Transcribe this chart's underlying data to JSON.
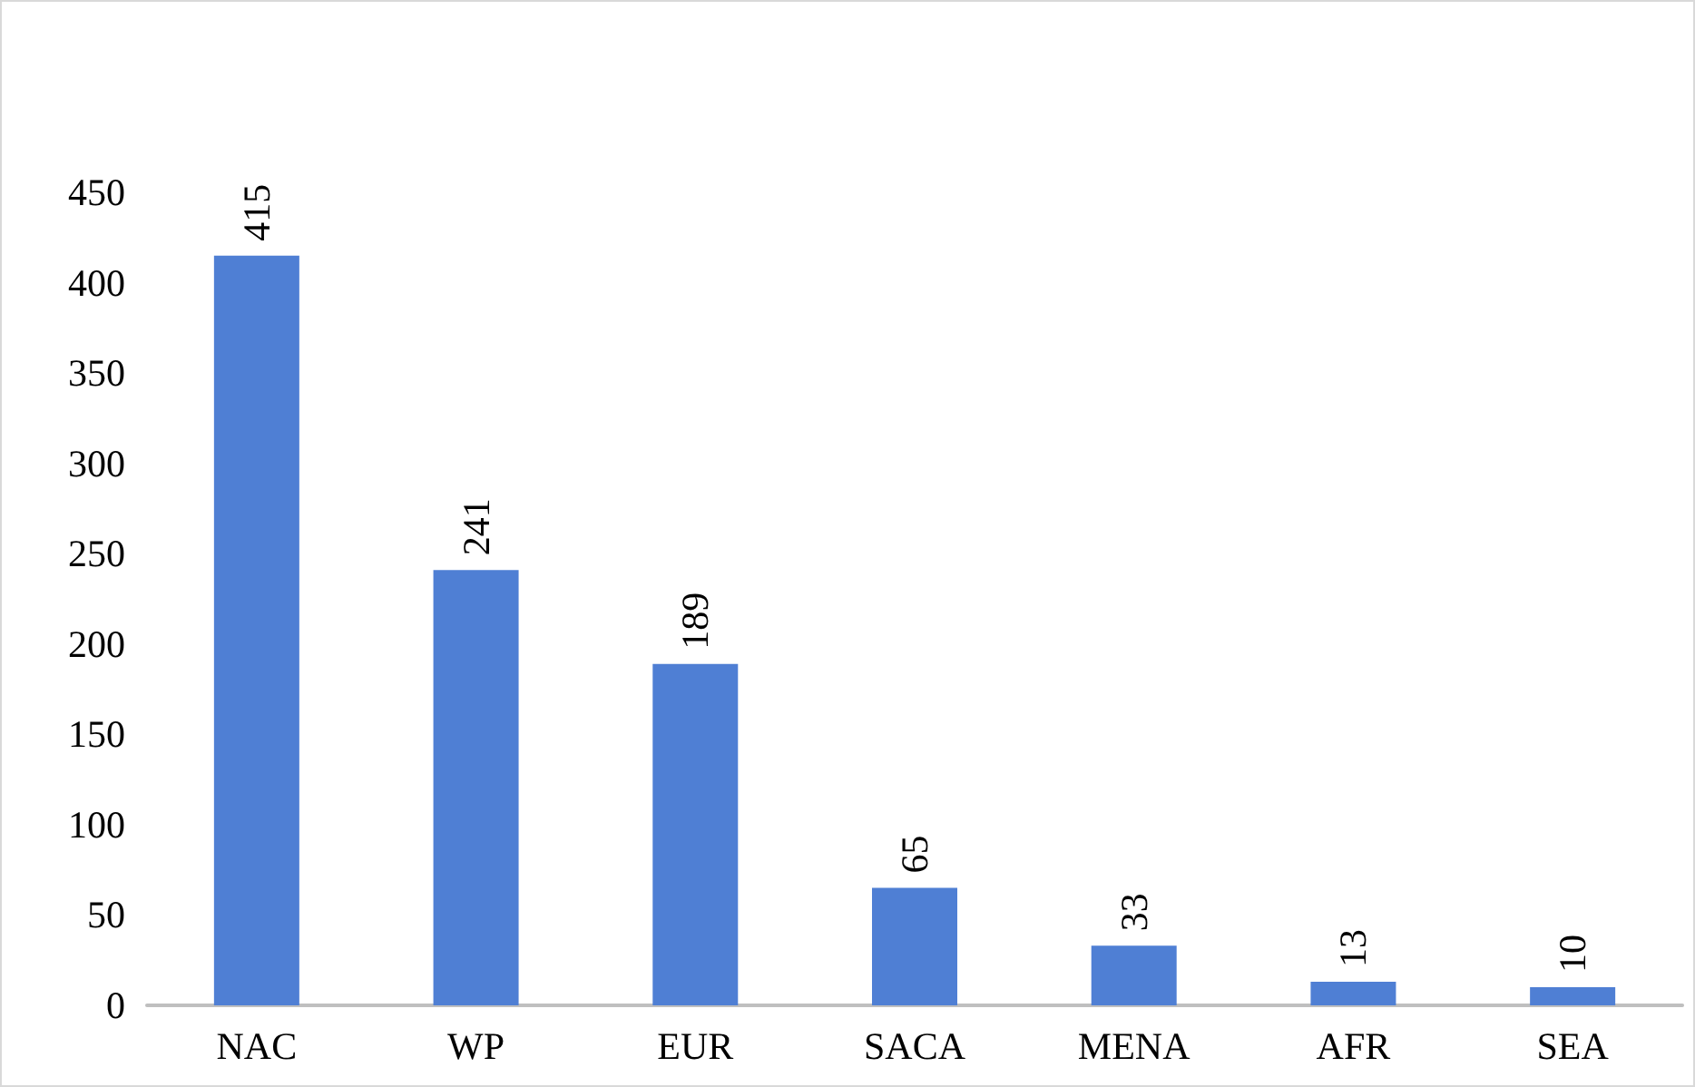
{
  "chart_data": {
    "type": "bar",
    "categories": [
      "NAC",
      "WP",
      "EUR",
      "SACA",
      "MENA",
      "AFR",
      "SEA"
    ],
    "values": [
      415,
      241,
      189,
      65,
      33,
      13,
      10
    ],
    "color": "#4f7fd4",
    "ylim": [
      0,
      450
    ],
    "yticks": [
      0,
      50,
      100,
      150,
      200,
      250,
      300,
      350,
      400,
      450
    ],
    "data_labels": true
  }
}
